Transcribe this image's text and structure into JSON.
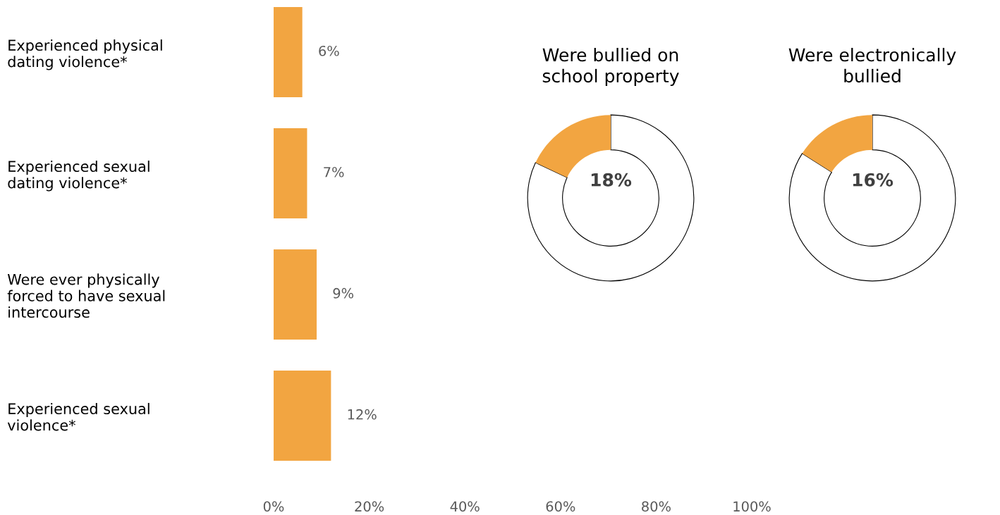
{
  "chart_data": [
    {
      "type": "bar",
      "orientation": "horizontal",
      "categories": [
        "Experienced physical\ndating violence*",
        "Experienced sexual\ndating violence*",
        "Were ever physically\nforced to have sexual\nintercourse",
        "Experienced sexual\nviolence*"
      ],
      "values": [
        6,
        7,
        9,
        12
      ],
      "color": "#f2a541",
      "value_labels": [
        "6%",
        "7%",
        "9%",
        "12%"
      ],
      "xlim": [
        0,
        100
      ],
      "xticks": [
        {
          "value": 0,
          "label": "0%"
        },
        {
          "value": 20,
          "label": "20%"
        },
        {
          "value": 40,
          "label": "40%"
        },
        {
          "value": 60,
          "label": "60%"
        },
        {
          "value": 80,
          "label": "80%"
        },
        {
          "value": 100,
          "label": "100%"
        }
      ],
      "grid": false,
      "legend": false
    },
    {
      "type": "donut",
      "title": "Were bullied on\nschool property",
      "categories": [
        null,
        null
      ],
      "values": [
        18,
        82
      ],
      "colors": [
        "#f2a541",
        "#ffffff"
      ],
      "annotations": [
        "18%"
      ]
    },
    {
      "type": "donut",
      "title": "Were electronically\nbullied",
      "categories": [
        null,
        null
      ],
      "values": [
        16,
        84
      ],
      "colors": [
        "#f2a541",
        "#ffffff"
      ],
      "annotations": [
        "16%"
      ]
    }
  ]
}
